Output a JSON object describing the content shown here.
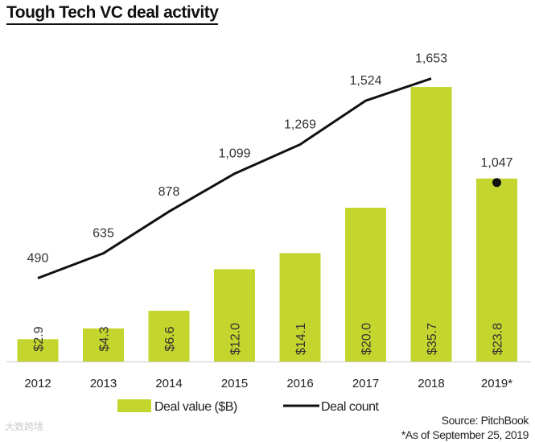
{
  "chart_data": {
    "type": "bar",
    "title": "Tough Tech VC deal activity",
    "categories": [
      "2012",
      "2013",
      "2014",
      "2015",
      "2016",
      "2017",
      "2018",
      "2019*"
    ],
    "series": [
      {
        "name": "Deal value ($B)",
        "type": "bar",
        "values": [
          2.9,
          4.3,
          6.6,
          12.0,
          14.1,
          20.0,
          35.7,
          23.8
        ],
        "labels": [
          "$2.9",
          "$4.3",
          "$6.6",
          "$12.0",
          "$14.1",
          "$20.0",
          "$35.7",
          "$23.8"
        ],
        "color": "#c4d52e"
      },
      {
        "name": "Deal count",
        "type": "line",
        "values": [
          490,
          635,
          878,
          1099,
          1269,
          1524,
          1653,
          1047
        ],
        "labels": [
          "490",
          "635",
          "878",
          "1,099",
          "1,269",
          "1,524",
          "1,653",
          "1,047"
        ],
        "color": "#111111"
      }
    ],
    "xlabel": "",
    "ylabel": "",
    "legend": "bottom",
    "grid": false
  },
  "source": "Source: PitchBook",
  "footnote": "*As of September 25, 2019",
  "watermark": "大数跨境"
}
